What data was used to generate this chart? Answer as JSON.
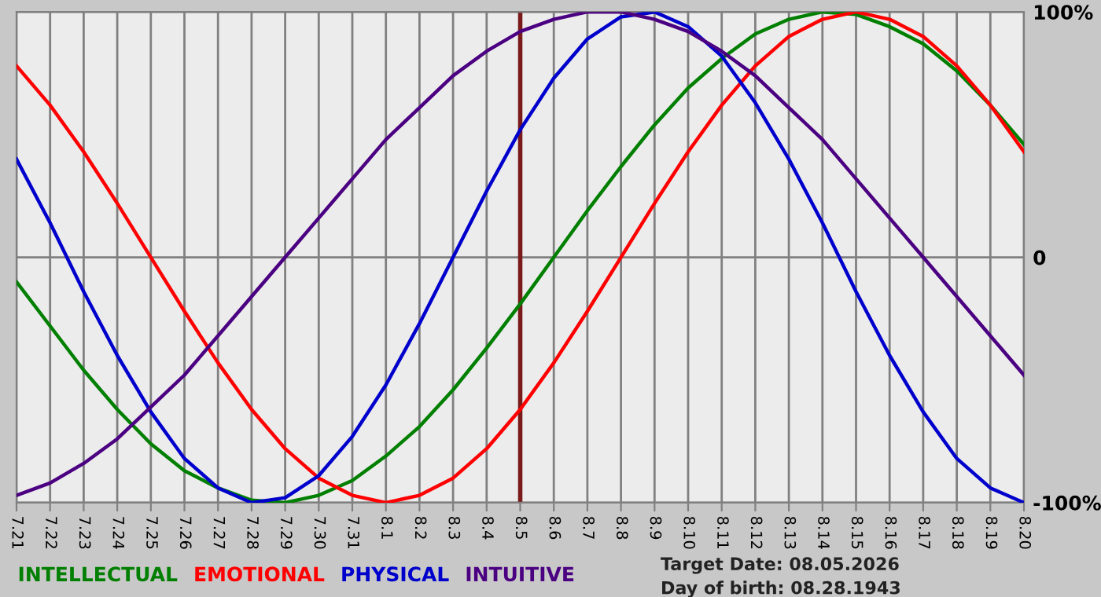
{
  "chart_data": {
    "type": "line",
    "categories": [
      "7.21",
      "7.22",
      "7.23",
      "7.24",
      "7.25",
      "7.26",
      "7.27",
      "7.28",
      "7.29",
      "7.30",
      "7.31",
      "8.1",
      "8.2",
      "8.3",
      "8.4",
      "8.5",
      "8.6",
      "8.7",
      "8.8",
      "8.9",
      "8.10",
      "8.11",
      "8.12",
      "8.13",
      "8.14",
      "8.15",
      "8.16",
      "8.17",
      "8.18",
      "8.19",
      "8.20"
    ],
    "series": [
      {
        "name": "INTELLECTUAL",
        "color": "#007f00",
        "values": [
          -10,
          -28,
          -46,
          -62,
          -76,
          -87,
          -94,
          -99,
          -100,
          -97,
          -91,
          -81,
          -69,
          -54,
          -37,
          -19,
          0,
          19,
          37,
          54,
          69,
          81,
          91,
          97,
          100,
          99,
          94,
          87,
          76,
          62,
          46
        ]
      },
      {
        "name": "EMOTIONAL",
        "color": "#ff0000",
        "values": [
          78,
          62,
          43,
          22,
          0,
          -22,
          -43,
          -62,
          -78,
          -90,
          -97,
          -100,
          -97,
          -90,
          -78,
          -62,
          -43,
          -22,
          0,
          22,
          43,
          62,
          78,
          90,
          97,
          100,
          97,
          90,
          78,
          62,
          43
        ]
      },
      {
        "name": "PHYSICAL",
        "color": "#0000cc",
        "values": [
          40,
          14,
          -14,
          -40,
          -63,
          -82,
          -94,
          -100,
          -98,
          -89,
          -73,
          -52,
          -27,
          0,
          27,
          52,
          73,
          89,
          98,
          100,
          94,
          82,
          63,
          40,
          14,
          -14,
          -40,
          -63,
          -82,
          -94,
          -100
        ]
      },
      {
        "name": "INTUITIVE",
        "color": "#4b0082",
        "values": [
          -97,
          -92,
          -84,
          -74,
          -61,
          -48,
          -32,
          -16,
          0,
          16,
          32,
          48,
          61,
          74,
          84,
          92,
          97,
          100,
          100,
          97,
          92,
          84,
          74,
          61,
          48,
          32,
          16,
          0,
          -16,
          -32,
          -48
        ]
      }
    ],
    "ylim": [
      -100,
      100
    ],
    "yticks": [
      {
        "value": 100,
        "label": "100%"
      },
      0,
      {
        "value": -100,
        "label": "-100%"
      }
    ],
    "ref_lines": [
      {
        "axis": "x",
        "value": "8.5",
        "color": "#7a1a1a"
      }
    ],
    "annotations": [
      "Target Date: 08.05.2026",
      "Day of birth: 08.28.1943"
    ],
    "grid": true,
    "legend": "bottom",
    "marker": "none",
    "line_style": "solid"
  }
}
